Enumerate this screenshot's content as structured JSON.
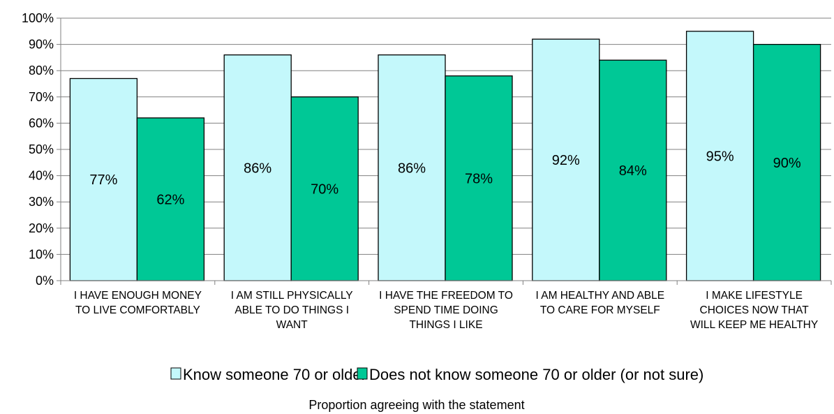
{
  "chart_data": {
    "type": "bar",
    "categories": [
      [
        "I HAVE ENOUGH MONEY",
        "TO LIVE COMFORTABLY"
      ],
      [
        "I AM STILL PHYSICALLY",
        "ABLE TO DO THINGS I",
        "WANT"
      ],
      [
        "I HAVE THE FREEDOM TO",
        "SPEND TIME DOING",
        "THINGS I LIKE"
      ],
      [
        "I AM HEALTHY AND ABLE",
        "TO CARE FOR MYSELF"
      ],
      [
        "I MAKE LIFESTYLE",
        "CHOICES NOW THAT",
        "WILL KEEP ME HEALTHY"
      ]
    ],
    "series": [
      {
        "name": "Know someone 70 or older",
        "values": [
          77,
          86,
          86,
          92,
          95
        ],
        "labels": [
          "77%",
          "86%",
          "86%",
          "92%",
          "95%"
        ],
        "color": "#c4f8fb"
      },
      {
        "name": "Does not know someone 70 or older (or not sure)",
        "values": [
          62,
          70,
          78,
          84,
          90
        ],
        "labels": [
          "62%",
          "70%",
          "78%",
          "84%",
          "90%"
        ],
        "color": "#00c896"
      }
    ],
    "xlabel": "Proportion agreeing with the statement",
    "ylabel": "",
    "ylim": [
      0,
      100
    ],
    "yticks": [
      "0%",
      "10%",
      "20%",
      "30%",
      "40%",
      "50%",
      "60%",
      "70%",
      "80%",
      "90%",
      "100%"
    ],
    "grid": true,
    "legend_position": "bottom"
  }
}
